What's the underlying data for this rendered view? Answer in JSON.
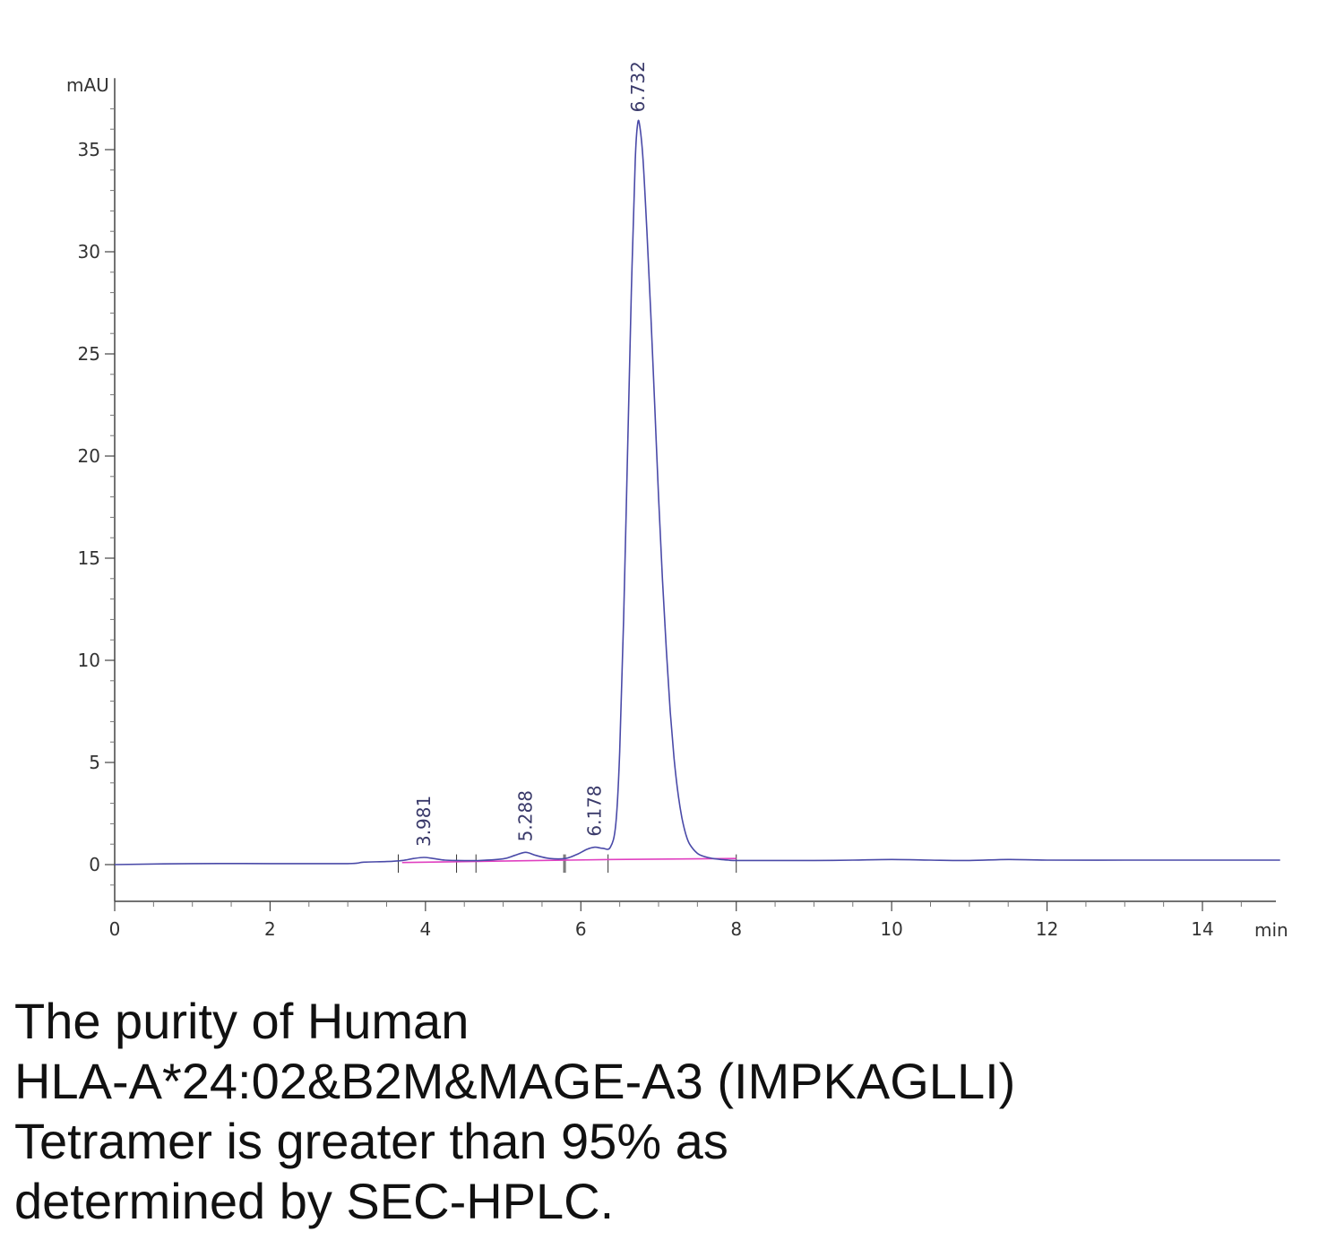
{
  "chart_data": {
    "type": "line",
    "ylabel": "mAU",
    "xlabel": "min",
    "xlim": [
      0,
      15
    ],
    "ylim": [
      -1.8,
      38.5
    ],
    "x_ticks": [
      0,
      2,
      4,
      6,
      8,
      10,
      12,
      14
    ],
    "y_ticks": [
      0,
      5,
      10,
      15,
      20,
      25,
      30,
      35
    ],
    "series": [
      {
        "color": "#4a4aa8",
        "x": [
          0,
          1,
          2,
          3,
          3.2,
          3.5,
          3.7,
          3.85,
          3.98,
          4.1,
          4.25,
          4.4,
          4.7,
          5.0,
          5.15,
          5.29,
          5.42,
          5.6,
          5.8,
          5.95,
          6.08,
          6.18,
          6.28,
          6.38,
          6.45,
          6.5,
          6.55,
          6.6,
          6.65,
          6.7,
          6.732,
          6.76,
          6.8,
          6.85,
          6.9,
          6.95,
          7.0,
          7.05,
          7.1,
          7.15,
          7.2,
          7.25,
          7.3,
          7.35,
          7.4,
          7.5,
          7.6,
          7.7,
          7.8,
          7.9,
          8.0,
          8.5,
          9.0,
          9.5,
          10.0,
          10.5,
          11.0,
          11.5,
          12.0,
          13.0,
          14.0,
          15.0
        ],
        "y": [
          0.0,
          0.05,
          0.05,
          0.05,
          0.12,
          0.15,
          0.2,
          0.3,
          0.35,
          0.3,
          0.22,
          0.2,
          0.2,
          0.28,
          0.45,
          0.6,
          0.45,
          0.3,
          0.3,
          0.5,
          0.75,
          0.85,
          0.8,
          0.85,
          2.0,
          5.5,
          12.0,
          20.0,
          28.0,
          34.5,
          36.3,
          36.1,
          34.5,
          31.0,
          27.0,
          22.5,
          18.0,
          14.0,
          10.5,
          7.5,
          5.2,
          3.5,
          2.3,
          1.5,
          1.0,
          0.55,
          0.38,
          0.3,
          0.25,
          0.22,
          0.2,
          0.2,
          0.2,
          0.22,
          0.25,
          0.22,
          0.2,
          0.25,
          0.22,
          0.22,
          0.22,
          0.22
        ]
      }
    ],
    "baseline": {
      "color": "#e040c0",
      "x": [
        3.7,
        6.4,
        8.0
      ],
      "y": [
        0.1,
        0.25,
        0.3
      ]
    },
    "peaks": [
      {
        "label": "3.981",
        "x": 3.981,
        "y": 0.35
      },
      {
        "label": "5.288",
        "x": 5.288,
        "y": 0.6
      },
      {
        "label": "6.178",
        "x": 6.178,
        "y": 0.85
      },
      {
        "label": "6.732",
        "x": 6.732,
        "y": 36.3
      }
    ],
    "peak_markers_x": [
      3.65,
      4.4,
      4.65,
      5.8,
      5.78,
      6.35,
      8.0
    ]
  },
  "caption": {
    "line1": "The purity of Human",
    "line2": "HLA-A*24:02&B2M&MAGE-A3 (IMPKAGLLI)",
    "line3": "Tetramer is greater than 95% as",
    "line4": "determined by SEC-HPLC."
  }
}
